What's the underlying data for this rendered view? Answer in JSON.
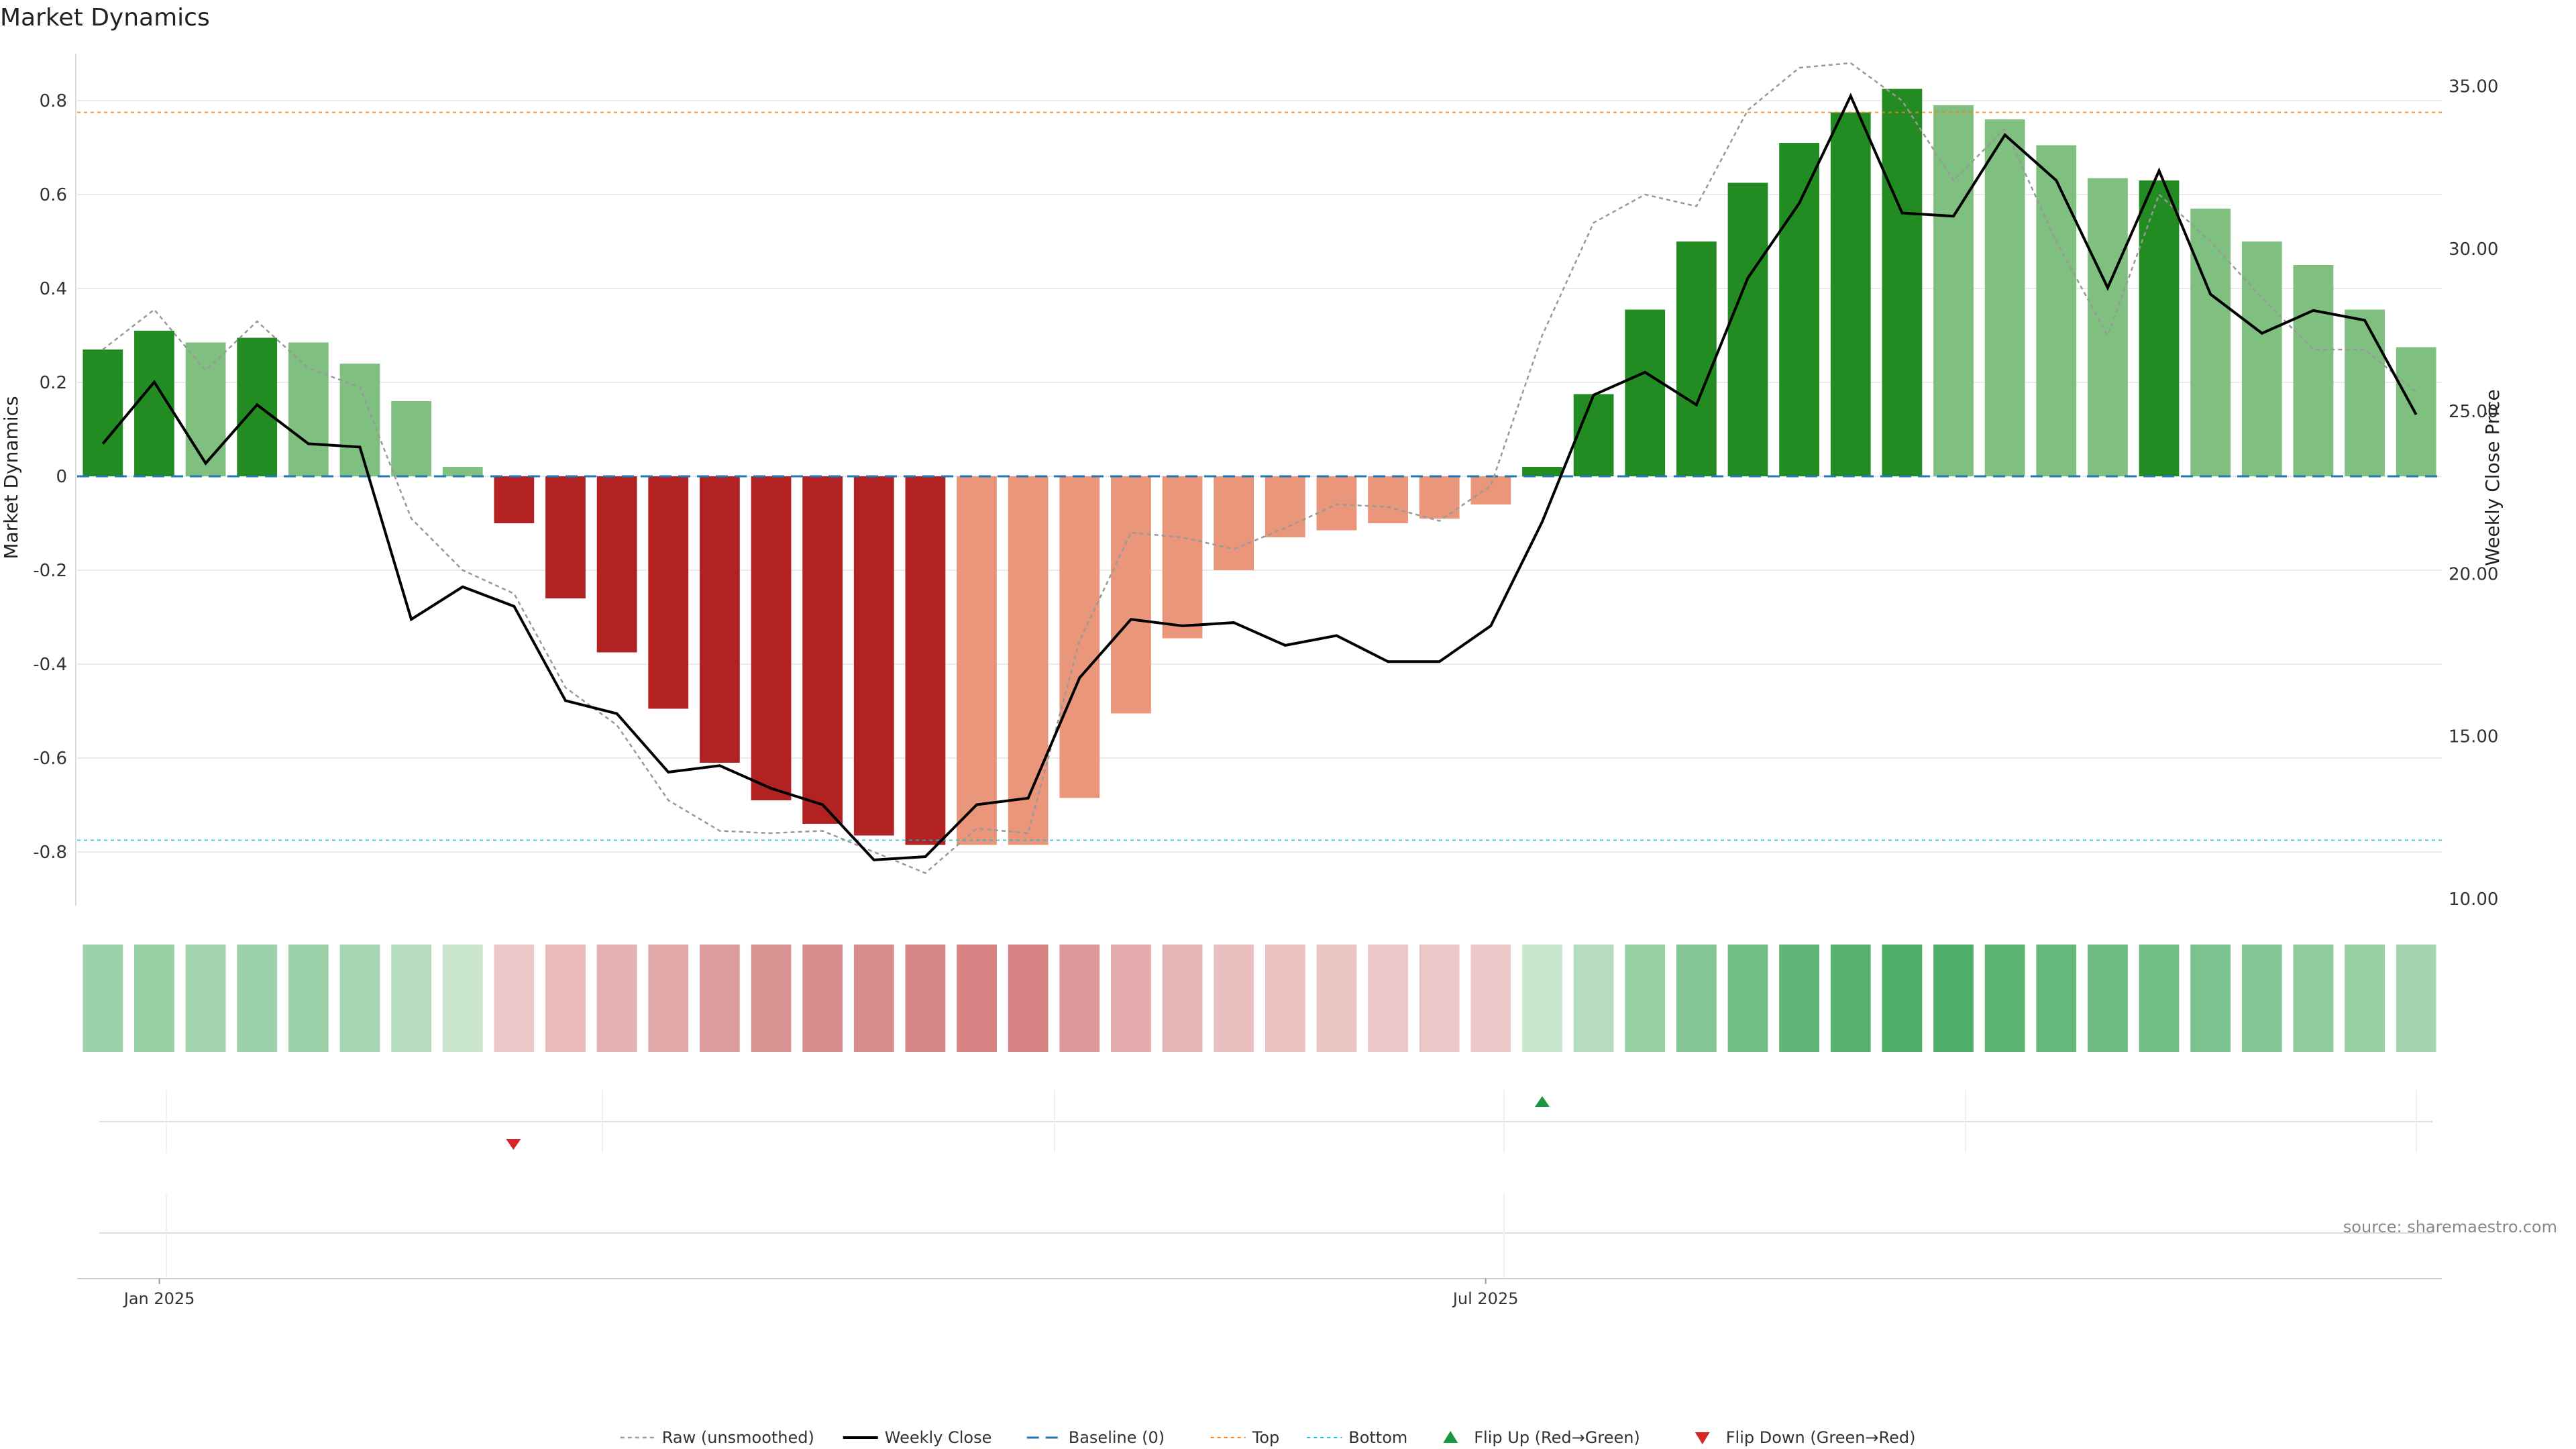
{
  "chart_data": {
    "type": "bar",
    "title": "Market Dynamics",
    "ylabel": "Market Dynamics",
    "y2label": "Weekly Close Price",
    "ylim": [
      -0.9,
      0.9
    ],
    "y2lim": [
      10.0,
      36.0
    ],
    "yticks": [
      -0.8,
      -0.6,
      -0.4,
      -0.2,
      0,
      0.2,
      0.4,
      0.6,
      0.8
    ],
    "ytick_labels": [
      "-0.8",
      "-0.6",
      "-0.4",
      "-0.2",
      "0",
      "0.2",
      "0.4",
      "0.6",
      "0.8"
    ],
    "y2ticks": [
      10,
      15,
      20,
      25,
      30,
      35
    ],
    "y2tick_labels": [
      "10.00",
      "15.00",
      "20.00",
      "25.00",
      "30.00",
      "35.00"
    ],
    "xtick_labels": [
      {
        "label": "Jan 2025",
        "index": 1.6
      },
      {
        "label": "Jul 2025",
        "index": 27.4
      }
    ],
    "grid": true,
    "top": 0.775,
    "bottom": -0.775,
    "values": [
      0.27,
      0.31,
      0.285,
      0.295,
      0.285,
      0.24,
      0.16,
      0.02,
      -0.1,
      -0.26,
      -0.375,
      -0.495,
      -0.61,
      -0.69,
      -0.74,
      -0.765,
      -0.785,
      -0.785,
      -0.785,
      -0.685,
      -0.505,
      -0.345,
      -0.2,
      -0.13,
      -0.115,
      -0.1,
      -0.09,
      -0.06,
      0.02,
      0.175,
      0.355,
      0.5,
      0.625,
      0.71,
      0.775,
      0.825,
      0.79,
      0.76,
      0.705,
      0.635,
      0.63,
      0.57,
      0.5,
      0.45,
      0.355,
      0.275
    ],
    "bar_shade": [
      "dark",
      "dark",
      "light",
      "dark",
      "light",
      "light",
      "light",
      "light",
      "dark",
      "dark",
      "dark",
      "dark",
      "dark",
      "dark",
      "dark",
      "dark",
      "dark",
      "light",
      "light",
      "light",
      "light",
      "light",
      "light",
      "light",
      "light",
      "light",
      "light",
      "light",
      "dark",
      "dark",
      "dark",
      "dark",
      "dark",
      "dark",
      "dark",
      "dark",
      "light",
      "light",
      "light",
      "light",
      "dark",
      "light",
      "light",
      "light",
      "light",
      "light"
    ],
    "raw": [
      0.27,
      0.355,
      0.225,
      0.33,
      0.23,
      0.19,
      -0.09,
      -0.2,
      -0.25,
      -0.45,
      -0.53,
      -0.69,
      -0.755,
      -0.76,
      -0.755,
      -0.8,
      -0.845,
      -0.75,
      -0.76,
      -0.35,
      -0.12,
      -0.13,
      -0.155,
      -0.11,
      -0.06,
      -0.065,
      -0.095,
      -0.02,
      0.3,
      0.54,
      0.6,
      0.575,
      0.78,
      0.87,
      0.88,
      0.8,
      0.63,
      0.74,
      0.5,
      0.3,
      0.6,
      0.5,
      0.38,
      0.27,
      0.27,
      0.18
    ],
    "weekly_close": [
      24.0,
      25.9,
      23.4,
      25.2,
      24.0,
      23.9,
      18.6,
      19.6,
      19.0,
      16.1,
      15.7,
      13.9,
      14.1,
      13.4,
      12.9,
      11.2,
      11.3,
      12.9,
      13.1,
      16.8,
      18.6,
      18.4,
      18.5,
      17.8,
      18.1,
      17.3,
      17.3,
      18.4,
      21.6,
      25.5,
      26.2,
      25.2,
      29.1,
      31.4,
      34.7,
      31.1,
      31.0,
      33.5,
      32.1,
      28.8,
      32.4,
      28.6,
      27.4,
      28.1,
      27.8,
      24.9
    ],
    "heatmap_values": [
      0.42,
      0.45,
      0.4,
      0.42,
      0.43,
      0.37,
      0.3,
      0.18,
      -0.2,
      -0.3,
      -0.36,
      -0.44,
      -0.53,
      -0.6,
      -0.64,
      -0.66,
      -0.7,
      -0.72,
      -0.73,
      -0.56,
      -0.42,
      -0.35,
      -0.26,
      -0.24,
      -0.22,
      -0.2,
      -0.2,
      -0.19,
      0.18,
      0.3,
      0.45,
      0.55,
      0.65,
      0.75,
      0.8,
      0.85,
      0.83,
      0.78,
      0.72,
      0.68,
      0.66,
      0.6,
      0.55,
      0.5,
      0.45,
      0.38
    ],
    "flip_up": [
      28
    ],
    "flip_down": [
      8
    ],
    "legend": {
      "placement": "bottom-center",
      "items": [
        {
          "label": "Raw (unsmoothed)",
          "style": "raw"
        },
        {
          "label": "Weekly Close",
          "style": "close"
        },
        {
          "label": "Baseline (0)",
          "style": "baseline"
        },
        {
          "label": "Top",
          "style": "top"
        },
        {
          "label": "Bottom",
          "style": "bottom"
        },
        {
          "label": "Flip Up (Red→Green)",
          "style": "flipup"
        },
        {
          "label": "Flip Down (Green→Red)",
          "style": "flipdown"
        }
      ]
    },
    "source_note": "source: sharemaestro.com",
    "colors": {
      "pos_dark": "#228b22",
      "pos_light": "#7fbf7f",
      "neg_dark": "#b22222",
      "neg_light": "#e9967a",
      "close_line": "#000000",
      "raw_line": "#999999",
      "baseline": "#1f77b4",
      "top": "#ff7f0e",
      "bottom": "#17becf",
      "flip_up": "#1a9641",
      "flip_down": "#d62728"
    }
  }
}
